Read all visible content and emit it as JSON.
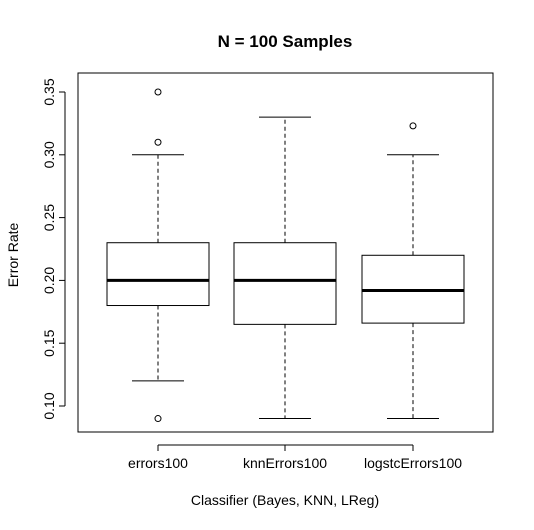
{
  "chart_data": {
    "type": "boxplot",
    "title": "N = 100 Samples",
    "xlabel": "Classifier (Bayes, KNN, LReg)",
    "ylabel": "Error Rate",
    "ylim": [
      0.08,
      0.355
    ],
    "yticks": [
      "0.10",
      "0.15",
      "0.20",
      "0.25",
      "0.30",
      "0.35"
    ],
    "categories": [
      "errors100",
      "knnErrors100",
      "logstcErrors100"
    ],
    "boxes": [
      {
        "name": "errors100",
        "whisker_low": 0.12,
        "q1": 0.18,
        "median": 0.2,
        "q3": 0.23,
        "whisker_high": 0.3,
        "outliers": [
          0.09,
          0.31,
          0.35
        ]
      },
      {
        "name": "knnErrors100",
        "whisker_low": 0.09,
        "q1": 0.165,
        "median": 0.2,
        "q3": 0.23,
        "whisker_high": 0.33,
        "outliers": []
      },
      {
        "name": "logstcErrors100",
        "whisker_low": 0.09,
        "q1": 0.166,
        "median": 0.192,
        "q3": 0.22,
        "whisker_high": 0.3,
        "outliers": [
          0.323
        ]
      }
    ]
  }
}
